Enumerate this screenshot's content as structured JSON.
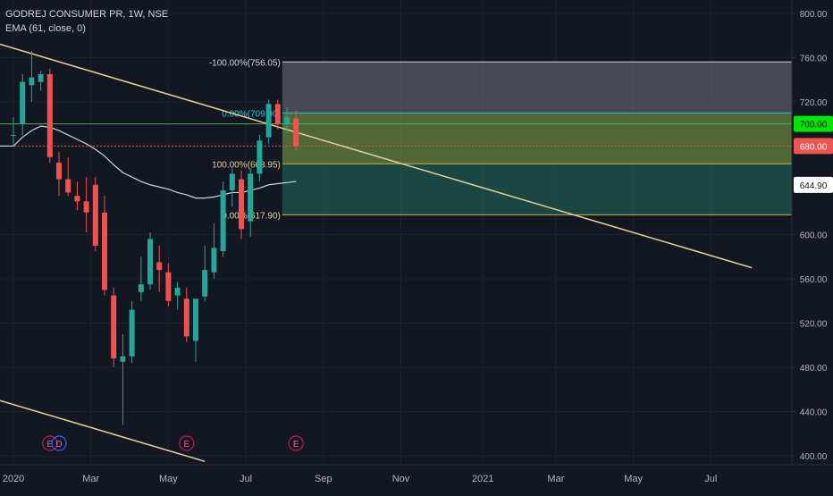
{
  "header": {
    "title": "GODREJ CONSUMER PR, 1W, NSE",
    "indicator": "EMA (61, close, 0)"
  },
  "colors": {
    "background": "#131722",
    "grid": "#1e2230",
    "text": "#b2b5be",
    "up": "#26a69a",
    "down": "#ef5350",
    "ema": "#d1d4dc",
    "trendline": "#e5d19a",
    "fib_top_zone": "#5d606b",
    "fib_mid_zone": "#6b8a3e",
    "fib_low_zone": "#1f5d50",
    "fib_line_green": "#4caf50",
    "fib_line_yellow": "#c8b43c",
    "price_label_green": "#00e600",
    "price_label_red": "#ef5350"
  },
  "chart_data": {
    "type": "candlestick",
    "y_axis": {
      "ylim": [
        392,
        812
      ],
      "ticks": [
        400,
        440,
        480,
        520,
        560,
        600,
        644.9,
        680,
        700,
        720,
        760,
        800
      ],
      "tick_labels": [
        "400.00",
        "440.00",
        "480.00",
        "520.00",
        "560.00",
        "600.00",
        "644.90",
        "680.00",
        "700.00",
        "720.00",
        "760.00",
        "800.00"
      ]
    },
    "x_axis": {
      "labels": [
        "2020",
        "Mar",
        "May",
        "Jul",
        "Sep",
        "Nov",
        "2021",
        "Mar",
        "May",
        "Jul"
      ],
      "label_weeks": [
        0,
        8.5,
        17,
        25.5,
        34,
        42.5,
        51.5,
        59.5,
        68,
        76.5
      ]
    },
    "candles": [
      {
        "o": 690,
        "h": 706,
        "l": 680,
        "c": 690
      },
      {
        "o": 700,
        "h": 745,
        "l": 690,
        "c": 738
      },
      {
        "o": 735,
        "h": 766,
        "l": 720,
        "c": 742
      },
      {
        "o": 738,
        "h": 748,
        "l": 730,
        "c": 745
      },
      {
        "o": 745,
        "h": 750,
        "l": 665,
        "c": 670
      },
      {
        "o": 665,
        "h": 675,
        "l": 635,
        "c": 650
      },
      {
        "o": 650,
        "h": 670,
        "l": 635,
        "c": 638
      },
      {
        "o": 635,
        "h": 648,
        "l": 622,
        "c": 630
      },
      {
        "o": 630,
        "h": 652,
        "l": 602,
        "c": 620
      },
      {
        "o": 645,
        "h": 652,
        "l": 585,
        "c": 590
      },
      {
        "o": 620,
        "h": 635,
        "l": 545,
        "c": 550
      },
      {
        "o": 545,
        "h": 552,
        "l": 480,
        "c": 488
      },
      {
        "o": 485,
        "h": 510,
        "l": 428,
        "c": 490
      },
      {
        "o": 490,
        "h": 540,
        "l": 484,
        "c": 532
      },
      {
        "o": 548,
        "h": 580,
        "l": 540,
        "c": 555
      },
      {
        "o": 555,
        "h": 602,
        "l": 550,
        "c": 596
      },
      {
        "o": 575,
        "h": 590,
        "l": 548,
        "c": 568
      },
      {
        "o": 566,
        "h": 574,
        "l": 535,
        "c": 540
      },
      {
        "o": 545,
        "h": 557,
        "l": 532,
        "c": 552
      },
      {
        "o": 542,
        "h": 552,
        "l": 503,
        "c": 508
      },
      {
        "o": 504,
        "h": 540,
        "l": 485,
        "c": 542
      },
      {
        "o": 544,
        "h": 590,
        "l": 540,
        "c": 568
      },
      {
        "o": 566,
        "h": 610,
        "l": 560,
        "c": 588
      },
      {
        "o": 585,
        "h": 648,
        "l": 580,
        "c": 640
      },
      {
        "o": 640,
        "h": 660,
        "l": 625,
        "c": 655
      },
      {
        "o": 650,
        "h": 658,
        "l": 596,
        "c": 605
      },
      {
        "o": 612,
        "h": 660,
        "l": 598,
        "c": 655
      },
      {
        "o": 655,
        "h": 690,
        "l": 648,
        "c": 685
      },
      {
        "o": 688,
        "h": 722,
        "l": 682,
        "c": 718
      },
      {
        "o": 718,
        "h": 722,
        "l": 695,
        "c": 700
      },
      {
        "o": 700,
        "h": 715,
        "l": 692,
        "c": 706
      },
      {
        "o": 705,
        "h": 712,
        "l": 676,
        "c": 680
      }
    ],
    "ema": [
      680,
      688,
      694,
      698,
      697,
      694,
      690,
      686,
      682,
      677,
      671,
      663,
      656,
      652,
      648,
      645,
      643,
      641,
      638,
      636,
      633,
      633,
      634,
      636,
      638,
      638,
      640,
      642,
      645,
      646,
      647,
      648
    ],
    "horizontal_lines": [
      {
        "price": 700,
        "label": "700.00",
        "color": "green"
      },
      {
        "price": 680,
        "label": "680.00",
        "color": "red",
        "dotted": true
      }
    ],
    "last_price_label": "644.90",
    "fib": {
      "levels": [
        {
          "label": "-100.00%(756.05)",
          "price": 756.05
        },
        {
          "label": "0.00%(709.90)",
          "price": 709.9
        },
        {
          "label": "100.00%(663.95)",
          "price": 663.95
        },
        {
          "label": "0.00%(617.90)",
          "price": 617.9
        }
      ],
      "start_week": 29.5
    },
    "trendlines": [
      {
        "from": [
          0,
          772
        ],
        "to": [
          81,
          570
        ]
      },
      {
        "from": [
          0,
          450
        ],
        "to": [
          21,
          395
        ]
      }
    ],
    "earnings_markers": [
      {
        "week": 4,
        "label": "E"
      },
      {
        "week": 5,
        "label": "D"
      },
      {
        "week": 19,
        "label": "E"
      },
      {
        "week": 31,
        "label": "E"
      }
    ]
  }
}
